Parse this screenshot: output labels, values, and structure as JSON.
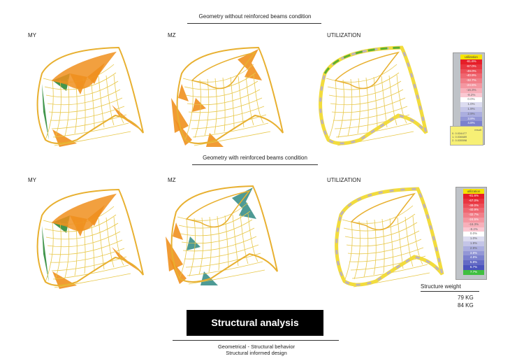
{
  "sections": [
    {
      "title": "Geometry without reinforced beams condition",
      "labels": [
        "MY",
        "MZ",
        "UTILIZATION"
      ]
    },
    {
      "title": "Geometry with reinforced beams condition",
      "labels": [
        "MY",
        "MZ",
        "UTILIZATION"
      ]
    }
  ],
  "legend1": {
    "title": "utilization",
    "rows": [
      "-81.6%",
      "-67.0%",
      "-49.0%",
      "-40.9%",
      "-32.7%",
      "-24.5%",
      "-16.3%",
      "-8.2%",
      "0.0%",
      "1.0%",
      "1.9%",
      "2.9%",
      "3.8%",
      "4.8%",
      "5.8%",
      "6.7%",
      "7.7%"
    ],
    "note": {
      "title": "result",
      "lines": [
        "0. 0.034477",
        "1. 0.036689",
        "2. 0.035598"
      ]
    }
  },
  "legend2": {
    "title": "utilization",
    "rows": [
      "-81.6%",
      "-67.0%",
      "-49.0%",
      "-40.9%",
      "-32.7%",
      "-24.5%",
      "-16.3%",
      "-8.2%",
      "0.0%",
      "1.0%",
      "1.9%",
      "2.9%",
      "3.8%",
      "4.8%",
      "5.8%",
      "6.7%",
      "7.7%"
    ]
  },
  "weight": {
    "label": "Structure weight",
    "values": [
      "79 KG",
      "84 KG"
    ]
  },
  "main_title": "Structural analysis",
  "subtitle": [
    "Geometrical - Structural behavior",
    "Structural  informed design"
  ],
  "colors": {
    "orange": "#f0901e",
    "green": "#2e8b3a",
    "teal": "#3a8f8a",
    "yellow": "#f2dc3c",
    "grid": "#e8c84a"
  }
}
